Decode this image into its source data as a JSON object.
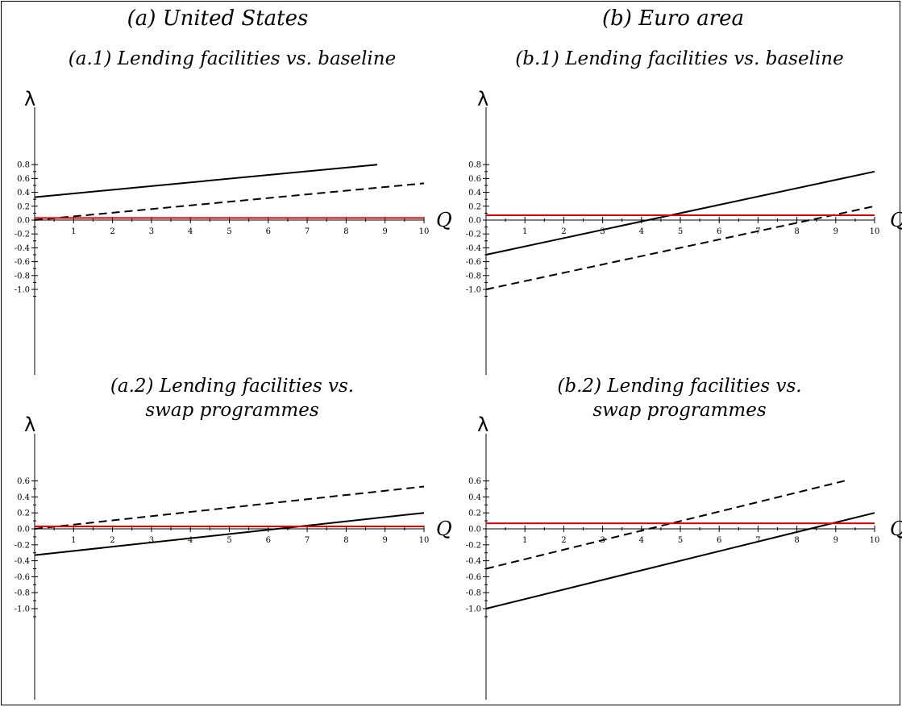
{
  "figure": {
    "left_title": "(a) United States",
    "right_title": "(b) Euro area"
  },
  "chart_data": [
    {
      "id": "a1",
      "type": "line",
      "title_lines": [
        "(a.1) Lending facilities vs. baseline"
      ],
      "xlabel": "Q",
      "ylabel": "λ",
      "xlim": [
        0,
        10
      ],
      "ylim": [
        -1.1,
        0.82
      ],
      "x_ticks": [
        1,
        2,
        3,
        4,
        5,
        6,
        7,
        8,
        9,
        10
      ],
      "y_ticks": [
        "0.8",
        "0.6",
        "0.4",
        "0.2",
        "0.0",
        "-0.2",
        "-0.4",
        "-0.6",
        "-0.8",
        "-1.0"
      ],
      "grid": false,
      "series": [
        {
          "style": "solid",
          "color": "#000000",
          "x": [
            0,
            8.8
          ],
          "y": [
            0.33,
            0.8
          ]
        },
        {
          "style": "dashed",
          "color": "#000000",
          "x": [
            0,
            10
          ],
          "y": [
            0.0,
            0.53
          ]
        },
        {
          "style": "solid",
          "color": "#e00000",
          "x": [
            0,
            10
          ],
          "y": [
            0.03,
            0.03
          ]
        }
      ]
    },
    {
      "id": "b1",
      "type": "line",
      "title_lines": [
        "(b.1) Lending facilities vs. baseline"
      ],
      "xlabel": "Q",
      "ylabel": "λ",
      "xlim": [
        0,
        10
      ],
      "ylim": [
        -1.1,
        0.82
      ],
      "x_ticks": [
        1,
        2,
        3,
        4,
        5,
        6,
        7,
        8,
        9,
        10
      ],
      "y_ticks": [
        "0.8",
        "0.6",
        "0.4",
        "0.2",
        "0.0",
        "-0.2",
        "-0.4",
        "-0.6",
        "-0.8",
        "-1.0"
      ],
      "grid": false,
      "series": [
        {
          "style": "solid",
          "color": "#000000",
          "x": [
            0,
            10
          ],
          "y": [
            -0.5,
            0.7
          ]
        },
        {
          "style": "dashed",
          "color": "#000000",
          "x": [
            0,
            10
          ],
          "y": [
            -1.0,
            0.2
          ]
        },
        {
          "style": "solid",
          "color": "#e00000",
          "x": [
            0,
            10
          ],
          "y": [
            0.07,
            0.07
          ]
        }
      ]
    },
    {
      "id": "a2",
      "type": "line",
      "title_lines": [
        "(a.2) Lending facilities vs.",
        "swap programmes"
      ],
      "xlabel": "Q",
      "ylabel": "λ",
      "xlim": [
        0,
        10
      ],
      "ylim": [
        -1.1,
        0.62
      ],
      "x_ticks": [
        1,
        2,
        3,
        4,
        5,
        6,
        7,
        8,
        9,
        10
      ],
      "y_ticks": [
        "0.6",
        "0.4",
        "0.2",
        "0.0",
        "-0.2",
        "-0.4",
        "-0.6",
        "-0.8",
        "-1.0"
      ],
      "grid": false,
      "series": [
        {
          "style": "solid",
          "color": "#000000",
          "x": [
            0,
            10
          ],
          "y": [
            -0.33,
            0.2
          ]
        },
        {
          "style": "dashed",
          "color": "#000000",
          "x": [
            0,
            10
          ],
          "y": [
            0.0,
            0.53
          ]
        },
        {
          "style": "solid",
          "color": "#e00000",
          "x": [
            0,
            10
          ],
          "y": [
            0.03,
            0.03
          ]
        }
      ]
    },
    {
      "id": "b2",
      "type": "line",
      "title_lines": [
        "(b.2) Lending facilities vs.",
        "swap programmes"
      ],
      "xlabel": "Q",
      "ylabel": "λ",
      "xlim": [
        0,
        10
      ],
      "ylim": [
        -1.1,
        0.62
      ],
      "x_ticks": [
        1,
        2,
        3,
        4,
        5,
        6,
        7,
        8,
        9,
        10
      ],
      "y_ticks": [
        "0.6",
        "0.4",
        "0.2",
        "0.0",
        "-0.2",
        "-0.4",
        "-0.6",
        "-0.8",
        "-1.0"
      ],
      "grid": false,
      "series": [
        {
          "style": "dashed",
          "color": "#000000",
          "x": [
            0,
            9.3
          ],
          "y": [
            -0.5,
            0.61
          ]
        },
        {
          "style": "solid",
          "color": "#000000",
          "x": [
            0,
            10
          ],
          "y": [
            -1.0,
            0.2
          ]
        },
        {
          "style": "solid",
          "color": "#e00000",
          "x": [
            0,
            10
          ],
          "y": [
            0.07,
            0.07
          ]
        }
      ]
    }
  ]
}
